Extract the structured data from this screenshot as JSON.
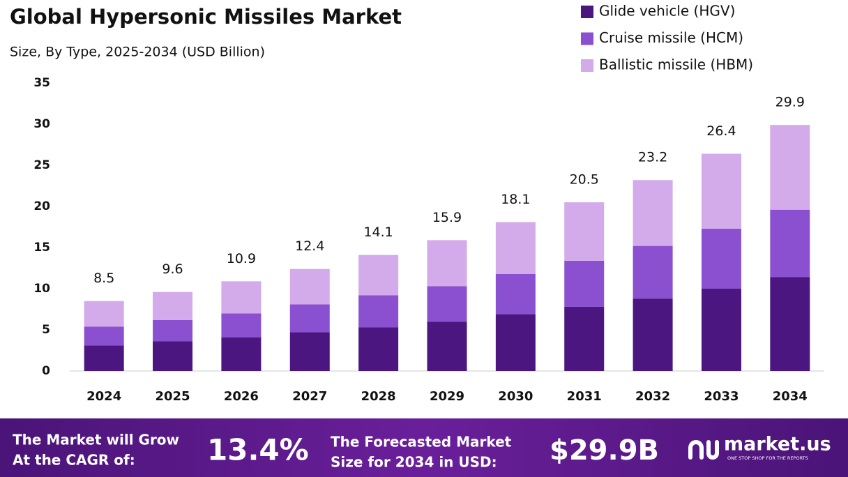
{
  "chart_data": {
    "type": "stacked_bar",
    "title": "Global Hypersonic Missiles Market",
    "subtitle": "Size, By Type, 2025-2034 (USD Billion)",
    "categories": [
      "2024",
      "2025",
      "2026",
      "2027",
      "2028",
      "2029",
      "2030",
      "2031",
      "2032",
      "2033",
      "2034"
    ],
    "series": [
      {
        "name": "Glide vehicle (HGV)",
        "color": "#4b1680",
        "values": [
          3.1,
          3.6,
          4.1,
          4.7,
          5.3,
          6.0,
          6.9,
          7.8,
          8.8,
          10.0,
          11.4
        ]
      },
      {
        "name": "Cruise missile (HCM)",
        "color": "#8b50cf",
        "values": [
          2.3,
          2.6,
          2.9,
          3.4,
          3.9,
          4.3,
          4.9,
          5.6,
          6.4,
          7.3,
          8.2
        ]
      },
      {
        "name": "Ballistic missile (HBM)",
        "color": "#d3aaea",
        "values": [
          3.1,
          3.4,
          3.9,
          4.3,
          4.9,
          5.6,
          6.3,
          7.1,
          8.0,
          9.1,
          10.3
        ]
      }
    ],
    "totals": [
      8.5,
      9.6,
      10.9,
      12.4,
      14.1,
      15.9,
      18.1,
      20.5,
      23.2,
      26.4,
      29.9
    ],
    "ylim": [
      0,
      35
    ],
    "yticks": [
      0,
      5,
      10,
      15,
      20,
      25,
      30,
      35
    ],
    "grid": false,
    "legend": "top-right"
  },
  "footer": {
    "cagr_label": [
      "The Market will Grow",
      "At the CAGR of:"
    ],
    "cagr_value": "13.4%",
    "forecast_label": [
      "The Forecasted Market",
      "Size for 2034 in USD:"
    ],
    "forecast_value": "$29.9B",
    "brand": "market.us",
    "tagline": "ONE STOP SHOP FOR THE REPORTS"
  }
}
